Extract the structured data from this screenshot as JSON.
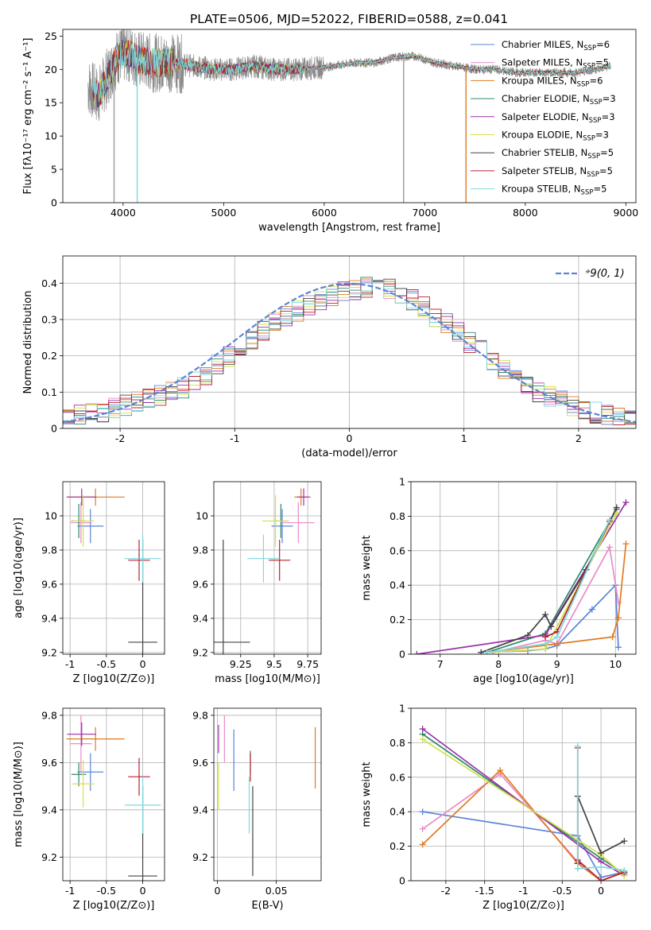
{
  "page_title": "PLATE=0506, MJD=52022, FIBERID=0588, z=0.041",
  "colors": {
    "Chabrier MILES": "#5b84d8",
    "Salpeter MILES": "#e98bc8",
    "Kroupa MILES": "#e07a20",
    "Chabrier ELODIE": "#2e8a6e",
    "Salpeter ELODIE": "#9b30a8",
    "Kroupa ELODIE": "#d6e04a",
    "Chabrier STELIB": "#444444",
    "Salpeter STELIB": "#b8232e",
    "Kroupa STELIB": "#7fd9dd",
    "data": "#8a8a8a",
    "normal": "#5b84d8"
  },
  "chart_data": [
    {
      "id": "spectrum",
      "type": "line",
      "title": "PLATE=0506, MJD=52022, FIBERID=0588, z=0.041",
      "xlabel": "wavelength [Angstrom, rest frame]",
      "ylabel": "Flux [fλ10⁻¹⁷ erg cm⁻² s⁻¹ A⁻¹]",
      "xlim": [
        3400,
        9100
      ],
      "ylim": [
        0,
        26
      ],
      "xticks": [
        4000,
        5000,
        6000,
        7000,
        8000,
        9000
      ],
      "yticks": [
        0,
        5,
        10,
        15,
        20,
        25
      ],
      "legend_position": "top-right",
      "legend": [
        "Chabrier MILES, N_SSP=6",
        "Salpeter MILES, N_SSP=5",
        "Kroupa MILES, N_SSP=6",
        "Chabrier ELODIE, N_SSP=3",
        "Salpeter ELODIE, N_SSP=3",
        "Kroupa ELODIE, N_SSP=3",
        "Chabrier STELIB, N_SSP=5",
        "Salpeter STELIB, N_SSP=5",
        "Kroupa STELIB, N_SSP=5"
      ],
      "data_range": [
        3650,
        8850
      ],
      "continuum": {
        "x": [
          3650,
          3750,
          3850,
          3950,
          4050,
          4150,
          4300,
          4500,
          4700,
          4900,
          5100,
          5300,
          5500,
          5700,
          5900,
          6100,
          6300,
          6500,
          6700,
          6900,
          7100,
          7300,
          7500,
          7700,
          7900,
          8100,
          8300,
          8500,
          8700,
          8850
        ],
        "y": [
          17.5,
          16,
          19,
          22,
          22.5,
          21.5,
          21,
          21,
          20.5,
          20,
          20,
          20.5,
          20,
          20,
          20.2,
          20.5,
          21,
          21,
          21.8,
          22,
          21,
          20.5,
          20,
          20,
          19.5,
          19.5,
          19.5,
          19.5,
          20,
          20.5
        ]
      },
      "dips": [
        {
          "x": 3910,
          "y": 0
        },
        {
          "x": 4140,
          "y": 0
        },
        {
          "x": 6790,
          "y": 0
        },
        {
          "x": 7410,
          "y": 0
        }
      ]
    },
    {
      "id": "residuals",
      "type": "line",
      "xlabel": "(data-model)/error",
      "ylabel": "Normed distribution",
      "xlim": [
        -2.5,
        2.5
      ],
      "ylim": [
        0,
        0.475
      ],
      "xticks": [
        -2,
        -1,
        0,
        1,
        2
      ],
      "yticks": [
        0,
        0.1,
        0.2,
        0.3,
        0.4
      ],
      "legend": [
        "N(0,1)"
      ],
      "legend_position": "top-right",
      "gaussian": {
        "mean": 0,
        "sigma": 1
      },
      "bin_width": 0.1,
      "hist_envelope": [
        0.03,
        0.04,
        0.05,
        0.07,
        0.09,
        0.11,
        0.15,
        0.2,
        0.25,
        0.3,
        0.33,
        0.36,
        0.38,
        0.39,
        0.38,
        0.34,
        0.29,
        0.24,
        0.19,
        0.14,
        0.1,
        0.07,
        0.05,
        0.03,
        0.02
      ]
    },
    {
      "id": "age-vs-Z",
      "type": "scatter",
      "xlabel": "Z [log10(Z/Z⊙)]",
      "ylabel": "age  [log10(age/yr)]",
      "xlim": [
        -1.1,
        0.3
      ],
      "ylim": [
        9.19,
        10.2
      ],
      "xticks": [
        -1.0,
        -0.5,
        0.0
      ],
      "yticks": [
        9.2,
        9.4,
        9.6,
        9.8,
        10.0
      ],
      "points": [
        {
          "model": "Chabrier MILES",
          "x": -0.72,
          "y": 9.94,
          "xerr": 0.18,
          "yerr": 0.1
        },
        {
          "model": "Salpeter MILES",
          "x": -0.85,
          "y": 9.96,
          "xerr": 0.15,
          "yerr": 0.12
        },
        {
          "model": "Kroupa MILES",
          "x": -0.65,
          "y": 10.11,
          "xerr": 0.4,
          "yerr": 0.05
        },
        {
          "model": "Chabrier ELODIE",
          "x": -0.88,
          "y": 9.97,
          "xerr": 0.1,
          "yerr": 0.1
        },
        {
          "model": "Salpeter ELODIE",
          "x": -0.84,
          "y": 10.11,
          "xerr": 0.2,
          "yerr": 0.05
        },
        {
          "model": "Kroupa ELODIE",
          "x": -0.82,
          "y": 9.97,
          "xerr": 0.15,
          "yerr": 0.15
        },
        {
          "model": "Chabrier STELIB",
          "x": 0.0,
          "y": 9.26,
          "xerr": 0.2,
          "yerr": 0.6
        },
        {
          "model": "Salpeter STELIB",
          "x": -0.05,
          "y": 9.74,
          "xerr": 0.15,
          "yerr": 0.12
        },
        {
          "model": "Kroupa STELIB",
          "x": 0.0,
          "y": 9.75,
          "xerr": 0.25,
          "yerr": 0.14
        }
      ]
    },
    {
      "id": "age-vs-mass",
      "type": "scatter",
      "xlabel": "mass [log10(M/M⊙)]",
      "ylabel": "",
      "xlim": [
        9.05,
        9.85
      ],
      "ylim": [
        9.19,
        10.2
      ],
      "xticks": [
        9.25,
        9.5,
        9.75
      ],
      "yticks": [
        9.2,
        9.4,
        9.6,
        9.8,
        10.0
      ],
      "points": [
        {
          "model": "Chabrier MILES",
          "x": 9.56,
          "y": 9.94,
          "xerr": 0.08,
          "yerr": 0.1
        },
        {
          "model": "Salpeter MILES",
          "x": 9.68,
          "y": 9.96,
          "xerr": 0.12,
          "yerr": 0.12
        },
        {
          "model": "Kroupa MILES",
          "x": 9.7,
          "y": 10.11,
          "xerr": 0.05,
          "yerr": 0.05
        },
        {
          "model": "Chabrier ELODIE",
          "x": 9.55,
          "y": 9.97,
          "xerr": 0.05,
          "yerr": 0.1
        },
        {
          "model": "Salpeter ELODIE",
          "x": 9.72,
          "y": 10.11,
          "xerr": 0.05,
          "yerr": 0.05
        },
        {
          "model": "Kroupa ELODIE",
          "x": 9.51,
          "y": 9.97,
          "xerr": 0.1,
          "yerr": 0.15
        },
        {
          "model": "Chabrier STELIB",
          "x": 9.12,
          "y": 9.26,
          "xerr": 0.2,
          "yerr": 0.6
        },
        {
          "model": "Salpeter STELIB",
          "x": 9.54,
          "y": 9.74,
          "xerr": 0.08,
          "yerr": 0.12
        },
        {
          "model": "Kroupa STELIB",
          "x": 9.42,
          "y": 9.75,
          "xerr": 0.12,
          "yerr": 0.14
        }
      ]
    },
    {
      "id": "weight-vs-age",
      "type": "line",
      "xlabel": "age  [log10(age/yr)]",
      "ylabel": "mass weight",
      "xlim": [
        6.5,
        10.35
      ],
      "ylim": [
        0,
        1.0
      ],
      "xticks": [
        7,
        8,
        9,
        10
      ],
      "yticks": [
        0,
        0.2,
        0.4,
        0.6,
        0.8,
        1.0
      ],
      "series": [
        {
          "model": "Chabrier MILES",
          "x": [
            7.7,
            8.5,
            8.8,
            9.0,
            9.6,
            10.0,
            10.05
          ],
          "y": [
            0.01,
            0.02,
            0.03,
            0.05,
            0.26,
            0.4,
            0.04
          ]
        },
        {
          "model": "Salpeter MILES",
          "x": [
            7.9,
            8.8,
            9.0,
            9.9,
            10.05
          ],
          "y": [
            0.01,
            0.08,
            0.06,
            0.62,
            0.3
          ]
        },
        {
          "model": "Kroupa MILES",
          "x": [
            7.8,
            9.0,
            9.95,
            10.05,
            10.18
          ],
          "y": [
            0.01,
            0.06,
            0.1,
            0.21,
            0.64
          ]
        },
        {
          "model": "Chabrier ELODIE",
          "x": [
            7.8,
            8.8,
            10.02
          ],
          "y": [
            0.01,
            0.12,
            0.84
          ]
        },
        {
          "model": "Salpeter ELODIE",
          "x": [
            6.6,
            8.8,
            10.18
          ],
          "y": [
            0.0,
            0.11,
            0.88
          ]
        },
        {
          "model": "Kroupa ELODIE",
          "x": [
            7.8,
            8.8,
            10.02
          ],
          "y": [
            0.01,
            0.03,
            0.82
          ]
        },
        {
          "model": "Chabrier STELIB",
          "x": [
            7.7,
            8.5,
            8.8,
            8.9,
            9.5,
            10.02
          ],
          "y": [
            0.01,
            0.11,
            0.23,
            0.16,
            0.49,
            0.85
          ]
        },
        {
          "model": "Salpeter STELIB",
          "x": [
            8.8,
            9.0,
            9.9
          ],
          "y": [
            0.1,
            0.13,
            0.77
          ]
        },
        {
          "model": "Kroupa STELIB",
          "x": [
            7.8,
            8.8,
            9.0,
            9.9
          ],
          "y": [
            0.01,
            0.06,
            0.1,
            0.78
          ]
        }
      ]
    },
    {
      "id": "mass-vs-Z",
      "type": "scatter",
      "xlabel": "Z [log10(Z/Z⊙)]",
      "ylabel": "mass [log10(M/M⊙)]",
      "xlim": [
        -1.1,
        0.3
      ],
      "ylim": [
        9.1,
        9.83
      ],
      "xticks": [
        -1.0,
        -0.5,
        0.0
      ],
      "yticks": [
        9.2,
        9.4,
        9.6,
        9.8
      ],
      "points": [
        {
          "model": "Chabrier MILES",
          "x": -0.72,
          "y": 9.56,
          "xerr": 0.18,
          "yerr": 0.08
        },
        {
          "model": "Salpeter MILES",
          "x": -0.85,
          "y": 9.68,
          "xerr": 0.15,
          "yerr": 0.12
        },
        {
          "model": "Kroupa MILES",
          "x": -0.65,
          "y": 9.7,
          "xerr": 0.4,
          "yerr": 0.05
        },
        {
          "model": "Chabrier ELODIE",
          "x": -0.88,
          "y": 9.55,
          "xerr": 0.1,
          "yerr": 0.05
        },
        {
          "model": "Salpeter ELODIE",
          "x": -0.84,
          "y": 9.72,
          "xerr": 0.2,
          "yerr": 0.05
        },
        {
          "model": "Kroupa ELODIE",
          "x": -0.82,
          "y": 9.51,
          "xerr": 0.15,
          "yerr": 0.1
        },
        {
          "model": "Chabrier STELIB",
          "x": 0.0,
          "y": 9.12,
          "xerr": 0.2,
          "yerr": 0.38
        },
        {
          "model": "Salpeter STELIB",
          "x": -0.05,
          "y": 9.54,
          "xerr": 0.15,
          "yerr": 0.08
        },
        {
          "model": "Kroupa STELIB",
          "x": 0.0,
          "y": 9.42,
          "xerr": 0.25,
          "yerr": 0.12
        }
      ]
    },
    {
      "id": "mass-vs-EBV",
      "type": "scatter",
      "xlabel": "E(B-V)",
      "ylabel": "",
      "xlim": [
        -0.003,
        0.088
      ],
      "ylim": [
        9.1,
        9.83
      ],
      "xticks": [
        0.0,
        0.05
      ],
      "yticks": [
        9.2,
        9.4,
        9.6,
        9.8
      ],
      "points": [
        {
          "model": "Chabrier MILES",
          "x": 0.014,
          "y": 9.61,
          "yerr": 0.13
        },
        {
          "model": "Salpeter MILES",
          "x": 0.006,
          "y": 9.7,
          "yerr": 0.1
        },
        {
          "model": "Kroupa MILES",
          "x": 0.083,
          "y": 9.62,
          "yerr": 0.13
        },
        {
          "model": "Chabrier ELODIE",
          "x": 0.028,
          "y": 9.6,
          "yerr": 0.05
        },
        {
          "model": "Salpeter ELODIE",
          "x": 0.001,
          "y": 9.7,
          "yerr": 0.06
        },
        {
          "model": "Kroupa ELODIE",
          "x": 0.001,
          "y": 9.5,
          "yerr": 0.1
        },
        {
          "model": "Chabrier STELIB",
          "x": 0.03,
          "y": 9.31,
          "yerr": 0.19
        },
        {
          "model": "Salpeter STELIB",
          "x": 0.028,
          "y": 9.58,
          "yerr": 0.06
        },
        {
          "model": "Kroupa STELIB",
          "x": 0.027,
          "y": 9.42,
          "yerr": 0.12
        }
      ]
    },
    {
      "id": "weight-vs-Z",
      "type": "line",
      "xlabel": "Z [log10(Z/Z⊙)]",
      "ylabel": "mass weight",
      "xlim": [
        -2.45,
        0.45
      ],
      "ylim": [
        0,
        1.0
      ],
      "xticks": [
        -2.0,
        -1.5,
        -1.0,
        -0.5,
        0.0
      ],
      "yticks": [
        0,
        0.2,
        0.4,
        0.6,
        0.8,
        1.0
      ],
      "series": [
        {
          "model": "Chabrier MILES",
          "x": [
            -2.3,
            -0.3,
            0.0,
            0.3
          ],
          "y": [
            0.4,
            0.26,
            0.02,
            0.05
          ]
        },
        {
          "model": "Salpeter MILES",
          "x": [
            -2.3,
            -1.3,
            -0.3,
            0.0,
            0.3
          ],
          "y": [
            0.3,
            0.62,
            0.11,
            0.0,
            0.05
          ]
        },
        {
          "model": "Kroupa MILES",
          "x": [
            -2.3,
            -1.3,
            -0.3,
            0.0,
            0.3
          ],
          "y": [
            0.21,
            0.64,
            0.1,
            0.0,
            0.05
          ]
        },
        {
          "model": "Chabrier ELODIE",
          "x": [
            -2.3,
            0.0,
            0.3
          ],
          "y": [
            0.85,
            0.13,
            0.04
          ]
        },
        {
          "model": "Salpeter ELODIE",
          "x": [
            -2.3,
            0.0,
            0.3
          ],
          "y": [
            0.88,
            0.11,
            0.03
          ]
        },
        {
          "model": "Kroupa ELODIE",
          "x": [
            -2.3,
            0.0,
            0.3
          ],
          "y": [
            0.82,
            0.15,
            0.03
          ]
        },
        {
          "model": "Chabrier STELIB",
          "x": [
            -0.3,
            -0.3,
            0.0,
            0.3
          ],
          "y": [
            0.1,
            0.49,
            0.16,
            0.23
          ]
        },
        {
          "model": "Salpeter STELIB",
          "x": [
            -0.3,
            -0.3,
            0.0,
            0.3
          ],
          "y": [
            0.77,
            0.12,
            0.0,
            0.05
          ]
        },
        {
          "model": "Kroupa STELIB",
          "x": [
            -0.3,
            -0.3,
            0.0,
            0.3
          ],
          "y": [
            0.78,
            0.07,
            0.08,
            0.06
          ]
        }
      ]
    }
  ]
}
